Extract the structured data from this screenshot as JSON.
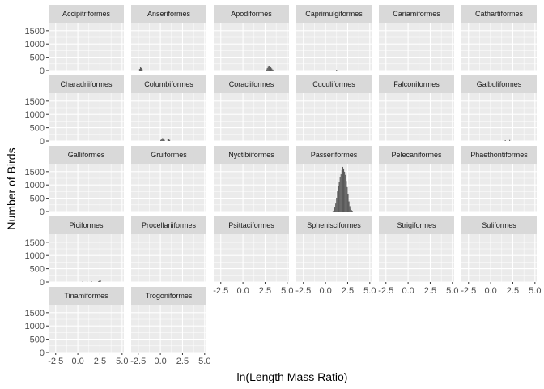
{
  "chart_data": {
    "type": "bar",
    "subtype": "faceted-histogram",
    "xlabel": "ln(Length Mass Ratio)",
    "ylabel": "Number of Birds",
    "xlim": [
      -3.3,
      5.2
    ],
    "ylim": [
      0,
      1800
    ],
    "x_ticks": [
      -2.5,
      0,
      2.5,
      5
    ],
    "x_tick_labels": [
      "-2.5",
      "0.0",
      "2.5",
      "5.0"
    ],
    "y_ticks": [
      0,
      500,
      1000,
      1500
    ],
    "y_tick_labels": [
      "0",
      "500",
      "1000",
      "1500"
    ],
    "bin_width": 0.1,
    "grid": true,
    "legend": "none",
    "colors": {
      "bar": "#595959",
      "panel_bg": "#ebebeb",
      "strip_bg": "#d9d9d9",
      "grid": "#ffffff"
    },
    "facets": [
      {
        "label": "Accipitriformes",
        "bins": []
      },
      {
        "label": "Anseriformes",
        "bins": [
          [
            -2.4,
            60
          ],
          [
            -2.3,
            120
          ],
          [
            -2.2,
            100
          ],
          [
            -2.1,
            50
          ]
        ]
      },
      {
        "label": "Apodiformes",
        "bins": [
          [
            2.6,
            40
          ],
          [
            2.7,
            90
          ],
          [
            2.8,
            140
          ],
          [
            2.9,
            170
          ],
          [
            3.0,
            160
          ],
          [
            3.1,
            120
          ],
          [
            3.2,
            80
          ],
          [
            3.3,
            40
          ],
          [
            3.4,
            20
          ]
        ]
      },
      {
        "label": "Caprimulgiformes",
        "bins": [
          [
            1.2,
            30
          ]
        ]
      },
      {
        "label": "Cariamiformes",
        "bins": []
      },
      {
        "label": "Cathartiformes",
        "bins": []
      },
      {
        "label": "Charadriiformes",
        "bins": []
      },
      {
        "label": "Columbiformes",
        "bins": [
          [
            0.0,
            40
          ],
          [
            0.1,
            90
          ],
          [
            0.2,
            110
          ],
          [
            0.3,
            80
          ],
          [
            0.4,
            40
          ],
          [
            0.8,
            60
          ],
          [
            0.9,
            80
          ],
          [
            1.0,
            40
          ]
        ]
      },
      {
        "label": "Coraciiformes",
        "bins": []
      },
      {
        "label": "Cuculiformes",
        "bins": []
      },
      {
        "label": "Falconiformes",
        "bins": []
      },
      {
        "label": "Galbuliformes",
        "bins": [
          [
            1.6,
            30
          ],
          [
            2.1,
            40
          ]
        ]
      },
      {
        "label": "Galliformes",
        "bins": []
      },
      {
        "label": "Gruiformes",
        "bins": []
      },
      {
        "label": "Nyctibiiformes",
        "bins": []
      },
      {
        "label": "Passeriformes",
        "bins": [
          [
            0.8,
            20
          ],
          [
            0.9,
            60
          ],
          [
            1.0,
            150
          ],
          [
            1.1,
            300
          ],
          [
            1.2,
            520
          ],
          [
            1.3,
            760
          ],
          [
            1.4,
            950
          ],
          [
            1.5,
            1120
          ],
          [
            1.6,
            1280
          ],
          [
            1.7,
            1400
          ],
          [
            1.8,
            1550
          ],
          [
            1.9,
            1680
          ],
          [
            2.0,
            1620
          ],
          [
            2.1,
            1500
          ],
          [
            2.2,
            1380
          ],
          [
            2.3,
            1150
          ],
          [
            2.4,
            920
          ],
          [
            2.5,
            650
          ],
          [
            2.6,
            380
          ],
          [
            2.7,
            200
          ],
          [
            2.8,
            100
          ],
          [
            2.9,
            50
          ],
          [
            3.0,
            20
          ]
        ]
      },
      {
        "label": "Pelecaniformes",
        "bins": []
      },
      {
        "label": "Phaethontiformes",
        "bins": []
      },
      {
        "label": "Piciformes",
        "bins": [
          [
            0.5,
            15
          ],
          [
            1.0,
            15
          ],
          [
            1.5,
            20
          ],
          [
            2.3,
            30
          ],
          [
            2.4,
            50
          ],
          [
            2.5,
            60
          ]
        ]
      },
      {
        "label": "Procellariiformes",
        "bins": []
      },
      {
        "label": "Psittaciformes",
        "bins": []
      },
      {
        "label": "Sphenisciformes",
        "bins": []
      },
      {
        "label": "Strigiformes",
        "bins": []
      },
      {
        "label": "Suliformes",
        "bins": []
      },
      {
        "label": "Tinamiformes",
        "bins": []
      },
      {
        "label": "Trogoniformes",
        "bins": []
      }
    ]
  }
}
